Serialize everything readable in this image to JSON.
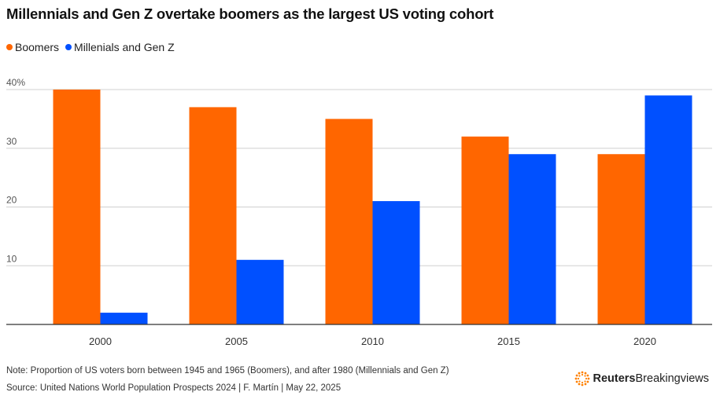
{
  "title": "Millennials and Gen Z overtake boomers as the largest US voting cohort",
  "legend": [
    {
      "label": "Boomers",
      "color": "#ff6600"
    },
    {
      "label": "Millenials and Gen Z",
      "color": "#0050ff"
    }
  ],
  "chart_data": {
    "type": "bar",
    "categories": [
      "2000",
      "2005",
      "2010",
      "2015",
      "2020"
    ],
    "series": [
      {
        "name": "Boomers",
        "color": "#ff6600",
        "values": [
          40,
          37,
          35,
          32,
          29
        ]
      },
      {
        "name": "Millenials and Gen Z",
        "color": "#0050ff",
        "values": [
          2,
          11,
          21,
          29,
          39
        ]
      }
    ],
    "yticks": [
      {
        "value": 10,
        "label": "10"
      },
      {
        "value": 20,
        "label": "20"
      },
      {
        "value": 30,
        "label": "30"
      },
      {
        "value": 40,
        "label": "40%"
      }
    ],
    "ylim": [
      0,
      40
    ],
    "grid": true,
    "legend_position": "top-left"
  },
  "footer": {
    "note": "Note: Proportion of US voters born between 1945 and 1965 (Boomers), and after 1980 (Millennials and Gen Z)",
    "source": "Source: United Nations World Population Prospects 2024 | F. Martín | May 22, 2025"
  },
  "logo": {
    "name": "reuters-breakingviews-logo",
    "brand": "Reuters",
    "product": "Breakingviews",
    "color": "#ff8000"
  }
}
